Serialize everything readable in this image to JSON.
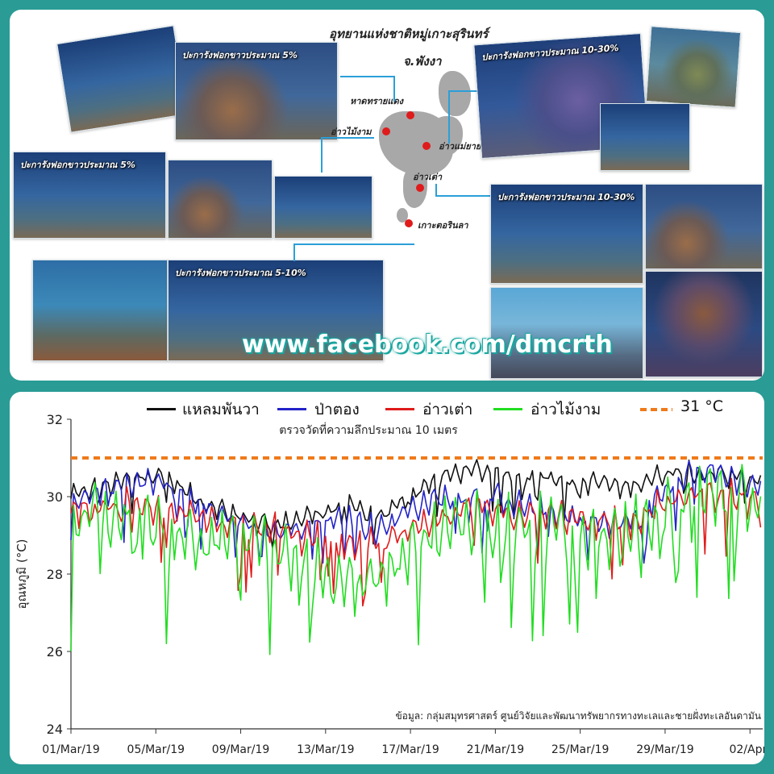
{
  "top_panel": {
    "map_title_line1": "อุทยานแห่งชาติหมู่เกาะสุรินทร์",
    "map_title_line2": "จ.พังงา",
    "sites": [
      {
        "label": "หาดทรายแดง",
        "id": "haad-sai-daeng"
      },
      {
        "label": "อ่าวไม้งาม",
        "id": "ao-mai-ngam"
      },
      {
        "label": "อ่าวแม่ยาย",
        "id": "ao-mae-yai"
      },
      {
        "label": "อ่าวเต่า",
        "id": "ao-tao"
      },
      {
        "label": "เกาะตอรินลา",
        "id": "koh-torinla"
      }
    ],
    "photo_captions": {
      "top_left": "ปะการังฟอกขาวประมาณ 5%",
      "mid_left": "ปะการังฟอกขาวประมาณ 5%",
      "bottom_left": "ปะการังฟอกขาวประมาณ 5-10%",
      "top_right": "ปะการังฟอกขาวประมาณ 10-30%",
      "mid_right": "ปะการังฟอกขาวประมาณ 10-30%"
    },
    "watermark": "www.facebook.com/dmcrth"
  },
  "chart_data": {
    "type": "line",
    "subtitle": "ตรวจวัดที่ความลึกประมาณ 10 เมตร",
    "ylabel": "อุณหภูมิ (°C)",
    "xlabel": "",
    "ylim": [
      24,
      32
    ],
    "yticks": [
      24,
      26,
      28,
      30,
      32
    ],
    "x_tick_labels": [
      "01/Mar/19",
      "05/Mar/19",
      "09/Mar/19",
      "13/Mar/19",
      "17/Mar/19",
      "21/Mar/19",
      "25/Mar/19",
      "29/Mar/19",
      "02/Apr/"
    ],
    "x_tick_days": [
      0,
      4,
      8,
      12,
      16,
      20,
      24,
      28,
      32
    ],
    "x_range_days": [
      0,
      32.6
    ],
    "threshold": {
      "value": 31,
      "label": "31 °C",
      "color": "#f07a1a"
    },
    "source_note": "ข้อมูล: กลุ่มสมุทรศาสตร์ ศูนย์วิจัยและพัฒนาทรัพยากรทางทะเลและชายฝั่งทะเลอันดามัน",
    "legend_placement": "top",
    "series": [
      {
        "name": "แหลมพันวา",
        "color": "#111111",
        "days": [
          0,
          1,
          2,
          3,
          4,
          5,
          6,
          7,
          8,
          9,
          10,
          11,
          12,
          13,
          14,
          15,
          16,
          17,
          18,
          19,
          20,
          21,
          22,
          23,
          24,
          25,
          26,
          27,
          28,
          29,
          30,
          31,
          32,
          32.6
        ],
        "mean": [
          30.0,
          30.2,
          30.3,
          30.5,
          30.6,
          30.3,
          29.9,
          29.7,
          29.5,
          29.4,
          29.3,
          29.5,
          29.6,
          29.8,
          29.5,
          29.6,
          30.1,
          30.4,
          30.6,
          30.7,
          30.6,
          30.5,
          30.6,
          30.5,
          30.3,
          30.4,
          30.2,
          30.4,
          30.6,
          30.7,
          30.6,
          30.6,
          30.4,
          30.5
        ],
        "amp": 0.35,
        "min_clip": 28.6
      },
      {
        "name": "ป่าตอง",
        "color": "#2323c8",
        "days": [
          0,
          1,
          2,
          3,
          4,
          5,
          6,
          7,
          8,
          9,
          10,
          11,
          12,
          13,
          14,
          15,
          16,
          17,
          18,
          19,
          20,
          21,
          22,
          23,
          24,
          25,
          26,
          27,
          28,
          29,
          30,
          31,
          32,
          32.6
        ],
        "mean": [
          29.9,
          30.1,
          30.2,
          30.3,
          30.4,
          30.1,
          29.8,
          29.5,
          29.3,
          29.2,
          29.1,
          29.3,
          29.3,
          29.5,
          29.2,
          29.3,
          29.7,
          29.9,
          30.0,
          30.1,
          30.0,
          29.8,
          29.7,
          29.6,
          29.4,
          29.3,
          29.3,
          29.6,
          30.2,
          30.6,
          30.7,
          30.5,
          30.3,
          30.3
        ],
        "amp": 0.45,
        "min_clip": 28.2
      },
      {
        "name": "อ่าวเต่า",
        "color": "#e01b1b",
        "days": [
          0,
          1,
          2,
          3,
          4,
          5,
          6,
          7,
          8,
          9,
          10,
          11,
          12,
          13,
          14,
          15,
          16,
          17,
          18,
          19,
          20,
          21,
          22,
          23,
          24,
          25,
          26,
          27,
          28,
          29,
          30,
          31,
          32,
          32.6
        ],
        "mean": [
          29.6,
          29.7,
          29.8,
          29.8,
          29.7,
          29.6,
          29.5,
          29.4,
          29.3,
          29.3,
          29.1,
          28.9,
          28.9,
          28.8,
          28.7,
          28.9,
          29.1,
          29.4,
          29.6,
          29.8,
          29.6,
          29.5,
          29.6,
          29.5,
          29.4,
          29.5,
          29.3,
          29.5,
          29.8,
          30.0,
          30.1,
          30.0,
          29.9,
          30.0
        ],
        "amp": 0.55,
        "min_clip": 26.6
      },
      {
        "name": "อ่าวไม้งาม",
        "color": "#22dd22",
        "days": [
          0,
          1,
          2,
          3,
          4,
          5,
          6,
          7,
          8,
          9,
          10,
          11,
          12,
          13,
          14,
          15,
          16,
          17,
          18,
          19,
          20,
          21,
          22,
          23,
          24,
          25,
          26,
          27,
          28,
          29,
          30,
          31,
          32,
          32.6
        ],
        "mean": [
          29.3,
          29.4,
          29.4,
          29.4,
          29.3,
          29.2,
          29.0,
          28.9,
          28.8,
          28.8,
          28.5,
          28.1,
          27.9,
          27.9,
          27.7,
          28.2,
          28.7,
          29.0,
          29.2,
          29.4,
          29.3,
          29.2,
          29.2,
          29.1,
          28.9,
          29.0,
          28.9,
          29.2,
          29.6,
          29.9,
          30.2,
          30.0,
          29.9,
          30.0
        ],
        "amp": 1.1,
        "min_clip": 25.0
      }
    ]
  }
}
